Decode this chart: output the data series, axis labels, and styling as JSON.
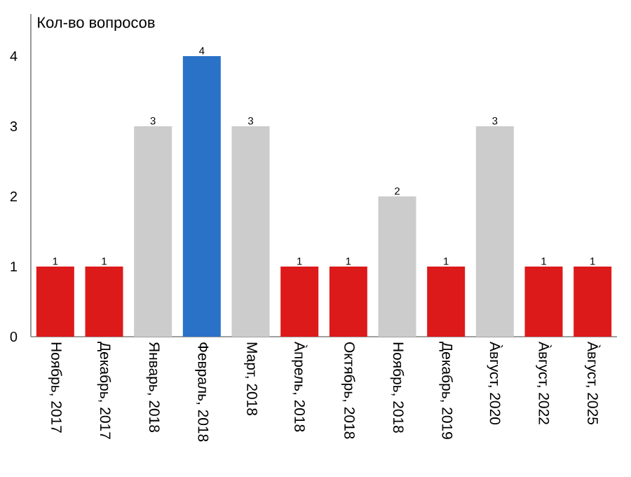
{
  "chart_data": {
    "type": "bar",
    "title": "Кол-во вопросов",
    "categories": [
      "Ноябрь, 2017",
      "Декабрь, 2017",
      "Январь, 2018",
      "Февраль, 2018",
      "Март, 2018",
      "Àпрель, 2018",
      "Октябрь, 2018",
      "Ноябрь, 2018",
      "Декабрь, 2019",
      "Àвгуст, 2020",
      "Àвгуст, 2022",
      "Àвгуст, 2025"
    ],
    "values": [
      1,
      1,
      3,
      4,
      3,
      1,
      1,
      2,
      1,
      3,
      1,
      1
    ],
    "colors": [
      "#dd1a1a",
      "#dd1a1a",
      "#cccccc",
      "#2a72c8",
      "#cccccc",
      "#dd1a1a",
      "#dd1a1a",
      "#cccccc",
      "#dd1a1a",
      "#cccccc",
      "#dd1a1a",
      "#dd1a1a"
    ],
    "ylim": [
      0,
      4.6
    ],
    "yticks": [
      0,
      1,
      2,
      3,
      4
    ],
    "data_labels": true,
    "grid": false
  }
}
